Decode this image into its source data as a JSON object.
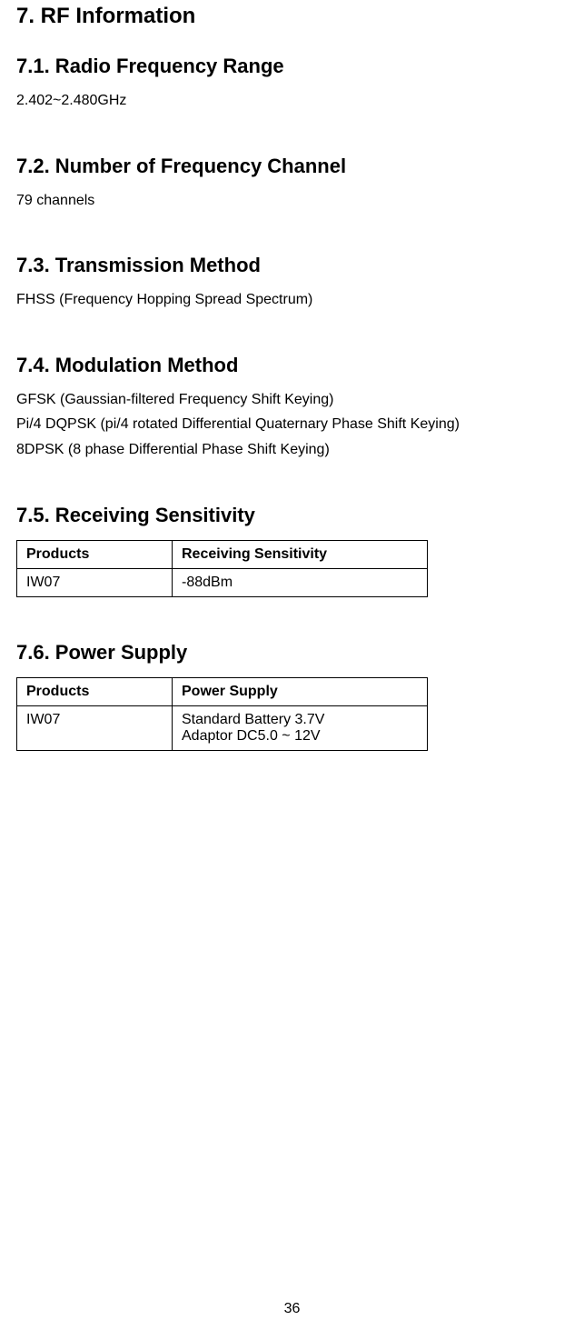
{
  "section": {
    "title": "7. RF Information",
    "subsections": {
      "s71": {
        "title": "7.1. Radio Frequency Range",
        "body": "2.402~2.480GHz"
      },
      "s72": {
        "title": "7.2. Number of Frequency Channel",
        "body": "79 channels"
      },
      "s73": {
        "title": "7.3. Transmission Method",
        "body": "FHSS (Frequency Hopping Spread Spectrum)"
      },
      "s74": {
        "title": "7.4. Modulation Method",
        "line1": "GFSK (Gaussian-filtered Frequency Shift Keying)",
        "line2": "Pi/4 DQPSK (pi/4 rotated Differential Quaternary Phase Shift Keying)",
        "line3": "8DPSK (8 phase Differential Phase Shift Keying)"
      },
      "s75": {
        "title": "7.5. Receiving Sensitivity",
        "table": {
          "headers": {
            "c0": "Products",
            "c1": "Receiving Sensitivity"
          },
          "rows": [
            {
              "c0": "IW07",
              "c1": "-88dBm"
            }
          ]
        }
      },
      "s76": {
        "title": "7.6. Power Supply",
        "table": {
          "headers": {
            "c0": "Products",
            "c1": "Power Supply"
          },
          "rows": [
            {
              "c0": "IW07",
              "c1_l1": "Standard Battery 3.7V",
              "c1_l2": "Adaptor DC5.0 ~ 12V"
            }
          ]
        }
      }
    }
  },
  "pageNumber": "36"
}
